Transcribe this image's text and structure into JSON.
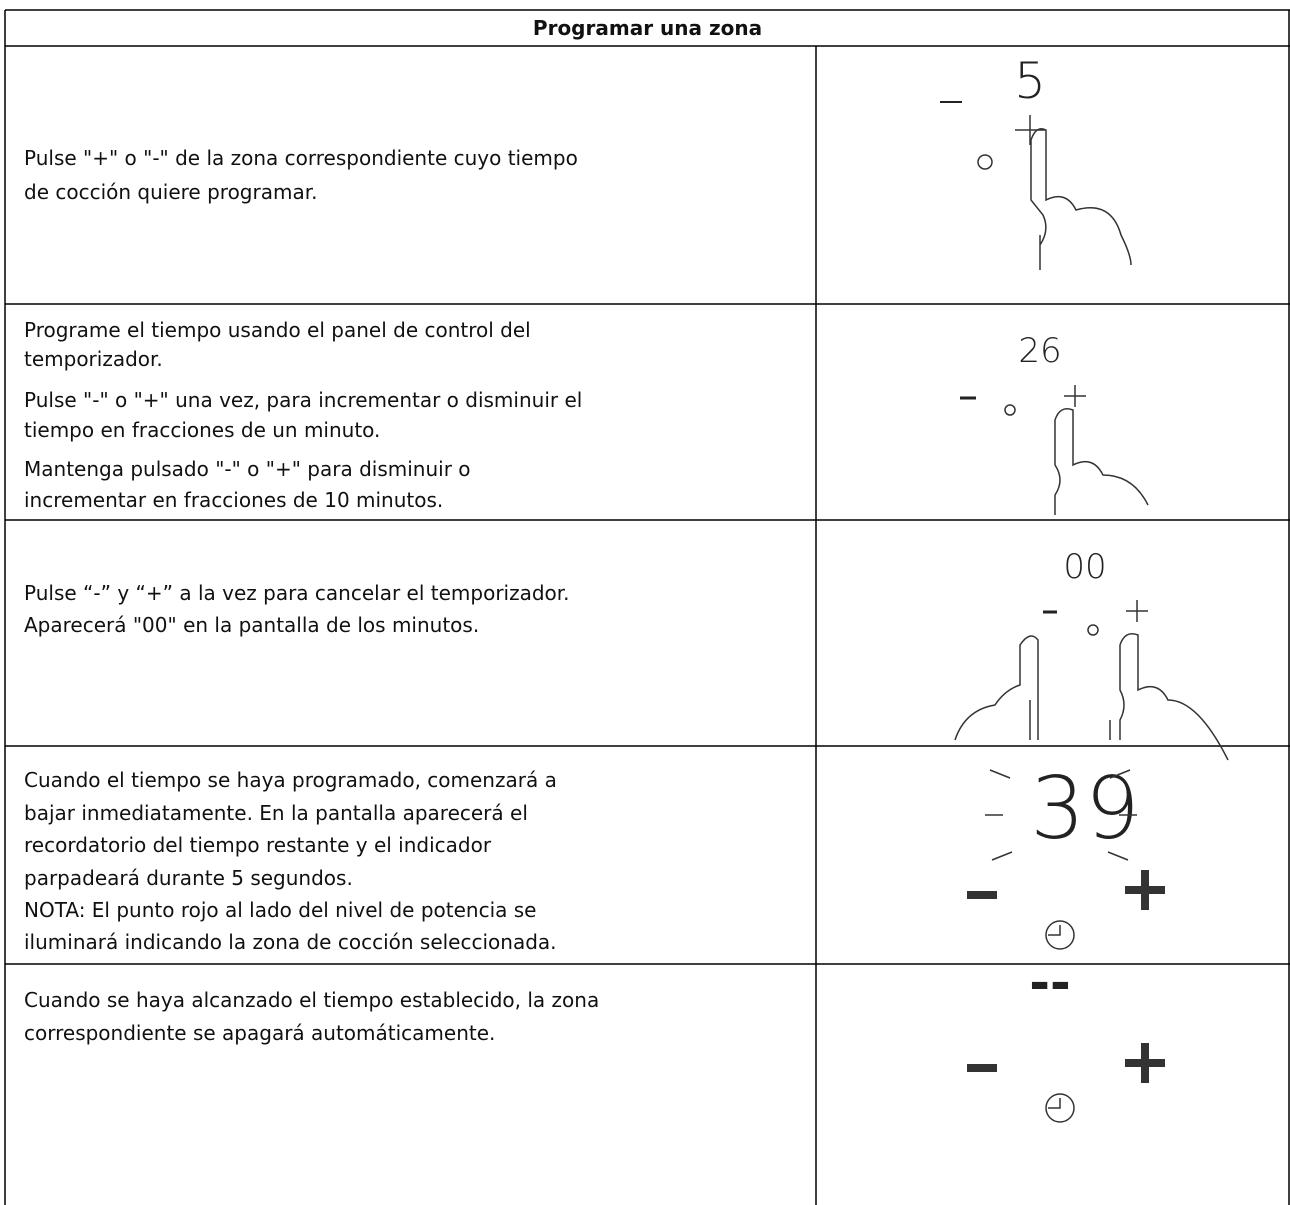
{
  "table": {
    "title": "Programar una zona",
    "rows": [
      {
        "text": [
          "Pulse \"+\" o \"-\" de la zona correspondiente cuyo tiempo",
          "de cocción quiere programar."
        ],
        "display": "5"
      },
      {
        "text": [
          "Programe el tiempo usando el panel de control del",
          "temporizador.",
          "Pulse \"-\" o \"+\" una vez, para incrementar o disminuir el",
          "tiempo en fracciones de un minuto.",
          "Mantenga pulsado \"-\" o \"+\" para disminuir o",
          "incrementar en fracciones de 10 minutos."
        ],
        "display": "26"
      },
      {
        "text": [
          "Pulse “-” y “+” a la vez para cancelar el temporizador.",
          "Aparecerá \"00\" en la pantalla de los minutos."
        ],
        "display": "00"
      },
      {
        "text": [
          "Cuando el tiempo se haya programado, comenzará a",
          "bajar inmediatamente. En la pantalla aparecerá el",
          "recordatorio del tiempo restante y el indicador",
          "parpadeará durante 5 segundos.",
          "NOTA: El punto rojo al lado del nivel de potencia se",
          "iluminará indicando la zona de cocción seleccionada."
        ],
        "display": "39"
      },
      {
        "text": [
          "Cuando se haya alcanzado el tiempo establecido, la zona",
          "correspondiente se apagará automáticamente."
        ],
        "display": "--"
      }
    ]
  }
}
